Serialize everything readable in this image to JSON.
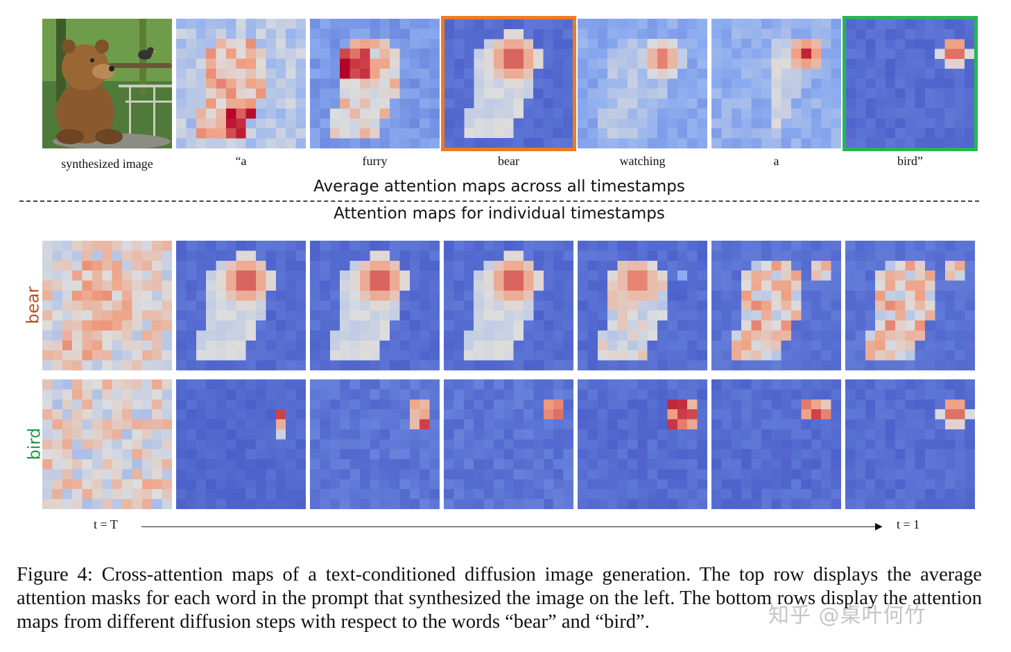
{
  "figure": {
    "synth_label": "synthesized image",
    "words": [
      "“a",
      "furry",
      "bear",
      "watching",
      "a",
      "bird”"
    ],
    "heading_avg": "Average attention maps across all timestamps",
    "heading_ind": "Attention maps for individual  timestamps",
    "row_labels": {
      "bear": "bear",
      "bird": "bird"
    },
    "time_start": "t = T",
    "time_end": "t = 1",
    "highlight_colors": {
      "bear": "#f07a22",
      "bird": "#27b556"
    },
    "row_label_colors": {
      "bear": "#b4521c",
      "bird": "#1f9a45"
    }
  },
  "caption": "Figure 4: Cross-attention maps of a text-conditioned diffusion image generation. The top row displays the average attention masks for each word in the prompt that synthesized the image on the left. The bottom rows display the attention maps from different diffusion steps with respect to the words “bear” and “bird”.",
  "watermark": "知乎 @桌叶何竹"
}
